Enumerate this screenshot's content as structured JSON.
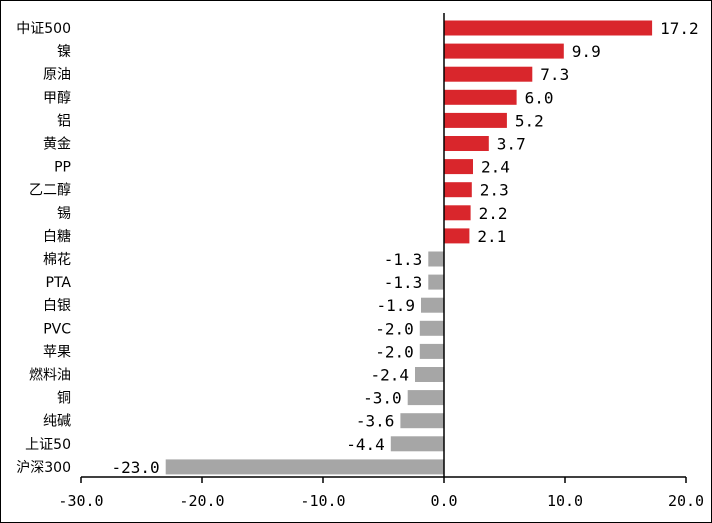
{
  "chart_data": {
    "type": "bar",
    "orientation": "horizontal",
    "categories": [
      "中证500",
      "镍",
      "原油",
      "甲醇",
      "铝",
      "黄金",
      "PP",
      "乙二醇",
      "锡",
      "白糖",
      "棉花",
      "PTA",
      "白银",
      "PVC",
      "苹果",
      "燃料油",
      "铜",
      "纯碱",
      "上证50",
      "沪深300"
    ],
    "values": [
      17.2,
      9.9,
      7.3,
      6.0,
      5.2,
      3.7,
      2.4,
      2.3,
      2.2,
      2.1,
      -1.3,
      -1.3,
      -1.9,
      -2.0,
      -2.0,
      -2.4,
      -3.0,
      -3.6,
      -4.4,
      -23.0
    ],
    "value_labels": [
      "17.2",
      "9.9",
      "7.3",
      "6.0",
      "5.2",
      "3.7",
      "2.4",
      "2.3",
      "2.2",
      "2.1",
      "-1.3",
      "-1.3",
      "-1.9",
      "-2.0",
      "-2.0",
      "-2.4",
      "-3.0",
      "-3.6",
      "-4.4",
      "-23.0"
    ],
    "xlim": [
      -30.0,
      20.0
    ],
    "xticks": [
      -30.0,
      -20.0,
      -10.0,
      0.0,
      10.0,
      20.0
    ],
    "xtick_labels": [
      "-30.0",
      "-20.0",
      "-10.0",
      "0.0",
      "10.0",
      "20.0"
    ],
    "title": "",
    "xlabel": "",
    "ylabel": "",
    "grid": false,
    "legend": "none",
    "colors": {
      "positive": "#d9262c",
      "negative": "#a6a6a6",
      "axis": "#000000",
      "text": "#000000"
    }
  }
}
